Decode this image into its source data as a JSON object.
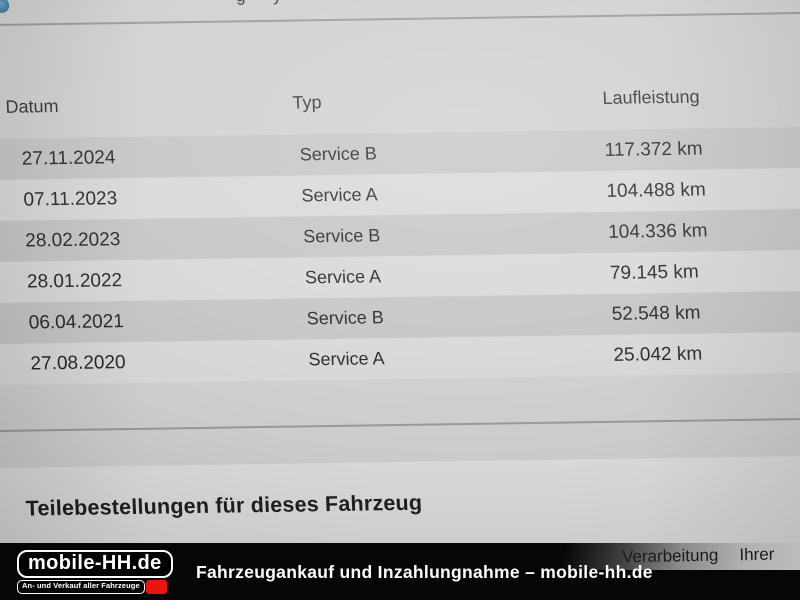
{
  "page": {
    "top_partial": {
      "glyph1": "g",
      "glyph2": "y"
    },
    "table": {
      "columns": {
        "datum": "Datum",
        "typ": "Typ",
        "laufleistung": "Laufleistung"
      },
      "rows": [
        {
          "datum": "27.11.2024",
          "typ": "Service B",
          "laufleistung": "117.372 km"
        },
        {
          "datum": "07.11.2023",
          "typ": "Service A",
          "laufleistung": "104.488 km"
        },
        {
          "datum": "28.02.2023",
          "typ": "Service B",
          "laufleistung": "104.336 km"
        },
        {
          "datum": "28.01.2022",
          "typ": "Service A",
          "laufleistung": "79.145 km"
        },
        {
          "datum": "06.04.2021",
          "typ": "Service B",
          "laufleistung": "52.548 km"
        },
        {
          "datum": "27.08.2020",
          "typ": "Service A",
          "laufleistung": "25.042 km"
        }
      ]
    },
    "section_heading": "Teilebestellungen für dieses Fahrzeug",
    "overlay_text": {
      "word1": "Verarbeitung",
      "word2": "Ihrer"
    }
  },
  "banner": {
    "logo_title": "mobile-HH.de",
    "logo_subtitle": "An- und Verkauf aller Fahrzeuge",
    "tagline": "Fahrzeugankauf und Inzahlungnahme – mobile-hh.de",
    "colors": {
      "red": "#ec1313",
      "black": "#060606"
    }
  },
  "icons": {
    "top_left": "blue-dot-icon"
  },
  "colors": {
    "page_bg": "#d0d0ce",
    "text": "#272725"
  }
}
